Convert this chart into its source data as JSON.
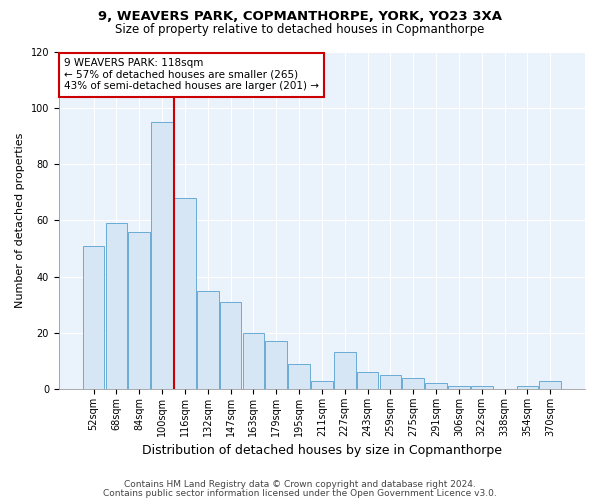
{
  "title1": "9, WEAVERS PARK, COPMANTHORPE, YORK, YO23 3XA",
  "title2": "Size of property relative to detached houses in Copmanthorpe",
  "xlabel": "Distribution of detached houses by size in Copmanthorpe",
  "ylabel": "Number of detached properties",
  "categories": [
    "52sqm",
    "68sqm",
    "84sqm",
    "100sqm",
    "116sqm",
    "132sqm",
    "147sqm",
    "163sqm",
    "179sqm",
    "195sqm",
    "211sqm",
    "227sqm",
    "243sqm",
    "259sqm",
    "275sqm",
    "291sqm",
    "306sqm",
    "322sqm",
    "338sqm",
    "354sqm",
    "370sqm"
  ],
  "values": [
    51,
    59,
    56,
    95,
    68,
    35,
    31,
    20,
    17,
    9,
    3,
    13,
    6,
    5,
    4,
    2,
    1,
    1,
    0,
    1,
    3
  ],
  "bar_color": "#d6e6f5",
  "bar_edge_color": "#6aaad4",
  "vline_index": 4,
  "vline_color": "#cc0000",
  "annotation_text": "9 WEAVERS PARK: 118sqm\n← 57% of detached houses are smaller (265)\n43% of semi-detached houses are larger (201) →",
  "annotation_box_color": "#ffffff",
  "annotation_box_edge": "#cc0000",
  "ylim": [
    0,
    120
  ],
  "yticks": [
    0,
    20,
    40,
    60,
    80,
    100,
    120
  ],
  "footer1": "Contains HM Land Registry data © Crown copyright and database right 2024.",
  "footer2": "Contains public sector information licensed under the Open Government Licence v3.0.",
  "bg_color": "#ffffff",
  "plot_bg_color": "#eaf2fb",
  "grid_color": "#ffffff",
  "title1_fontsize": 9.5,
  "title2_fontsize": 8.5,
  "ylabel_fontsize": 8,
  "xlabel_fontsize": 9,
  "tick_fontsize": 7,
  "footer_fontsize": 6.5
}
